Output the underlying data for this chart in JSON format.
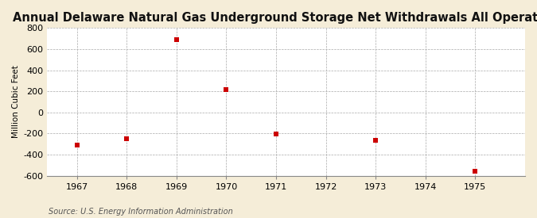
{
  "title": "Annual Delaware Natural Gas Underground Storage Net Withdrawals All Operators",
  "ylabel": "Million Cubic Feet",
  "source": "Source: U.S. Energy Information Administration",
  "years": [
    1967,
    1968,
    1969,
    1970,
    1971,
    1972,
    1973,
    1974,
    1975
  ],
  "values": [
    -310,
    -250,
    690,
    215,
    -205,
    null,
    -265,
    null,
    -555
  ],
  "ylim": [
    -600,
    800
  ],
  "yticks": [
    -600,
    -400,
    -200,
    0,
    200,
    400,
    600,
    800
  ],
  "xlim": [
    1966.4,
    1976.0
  ],
  "xticks": [
    1967,
    1968,
    1969,
    1970,
    1971,
    1972,
    1973,
    1974,
    1975
  ],
  "fig_bg_color": "#F5EDD8",
  "plot_bg_color": "#FFFFFF",
  "marker_color": "#CC0000",
  "marker_size": 5,
  "grid_color": "#AAAAAA",
  "title_fontsize": 10.5,
  "label_fontsize": 7.5,
  "tick_fontsize": 8,
  "source_fontsize": 7
}
